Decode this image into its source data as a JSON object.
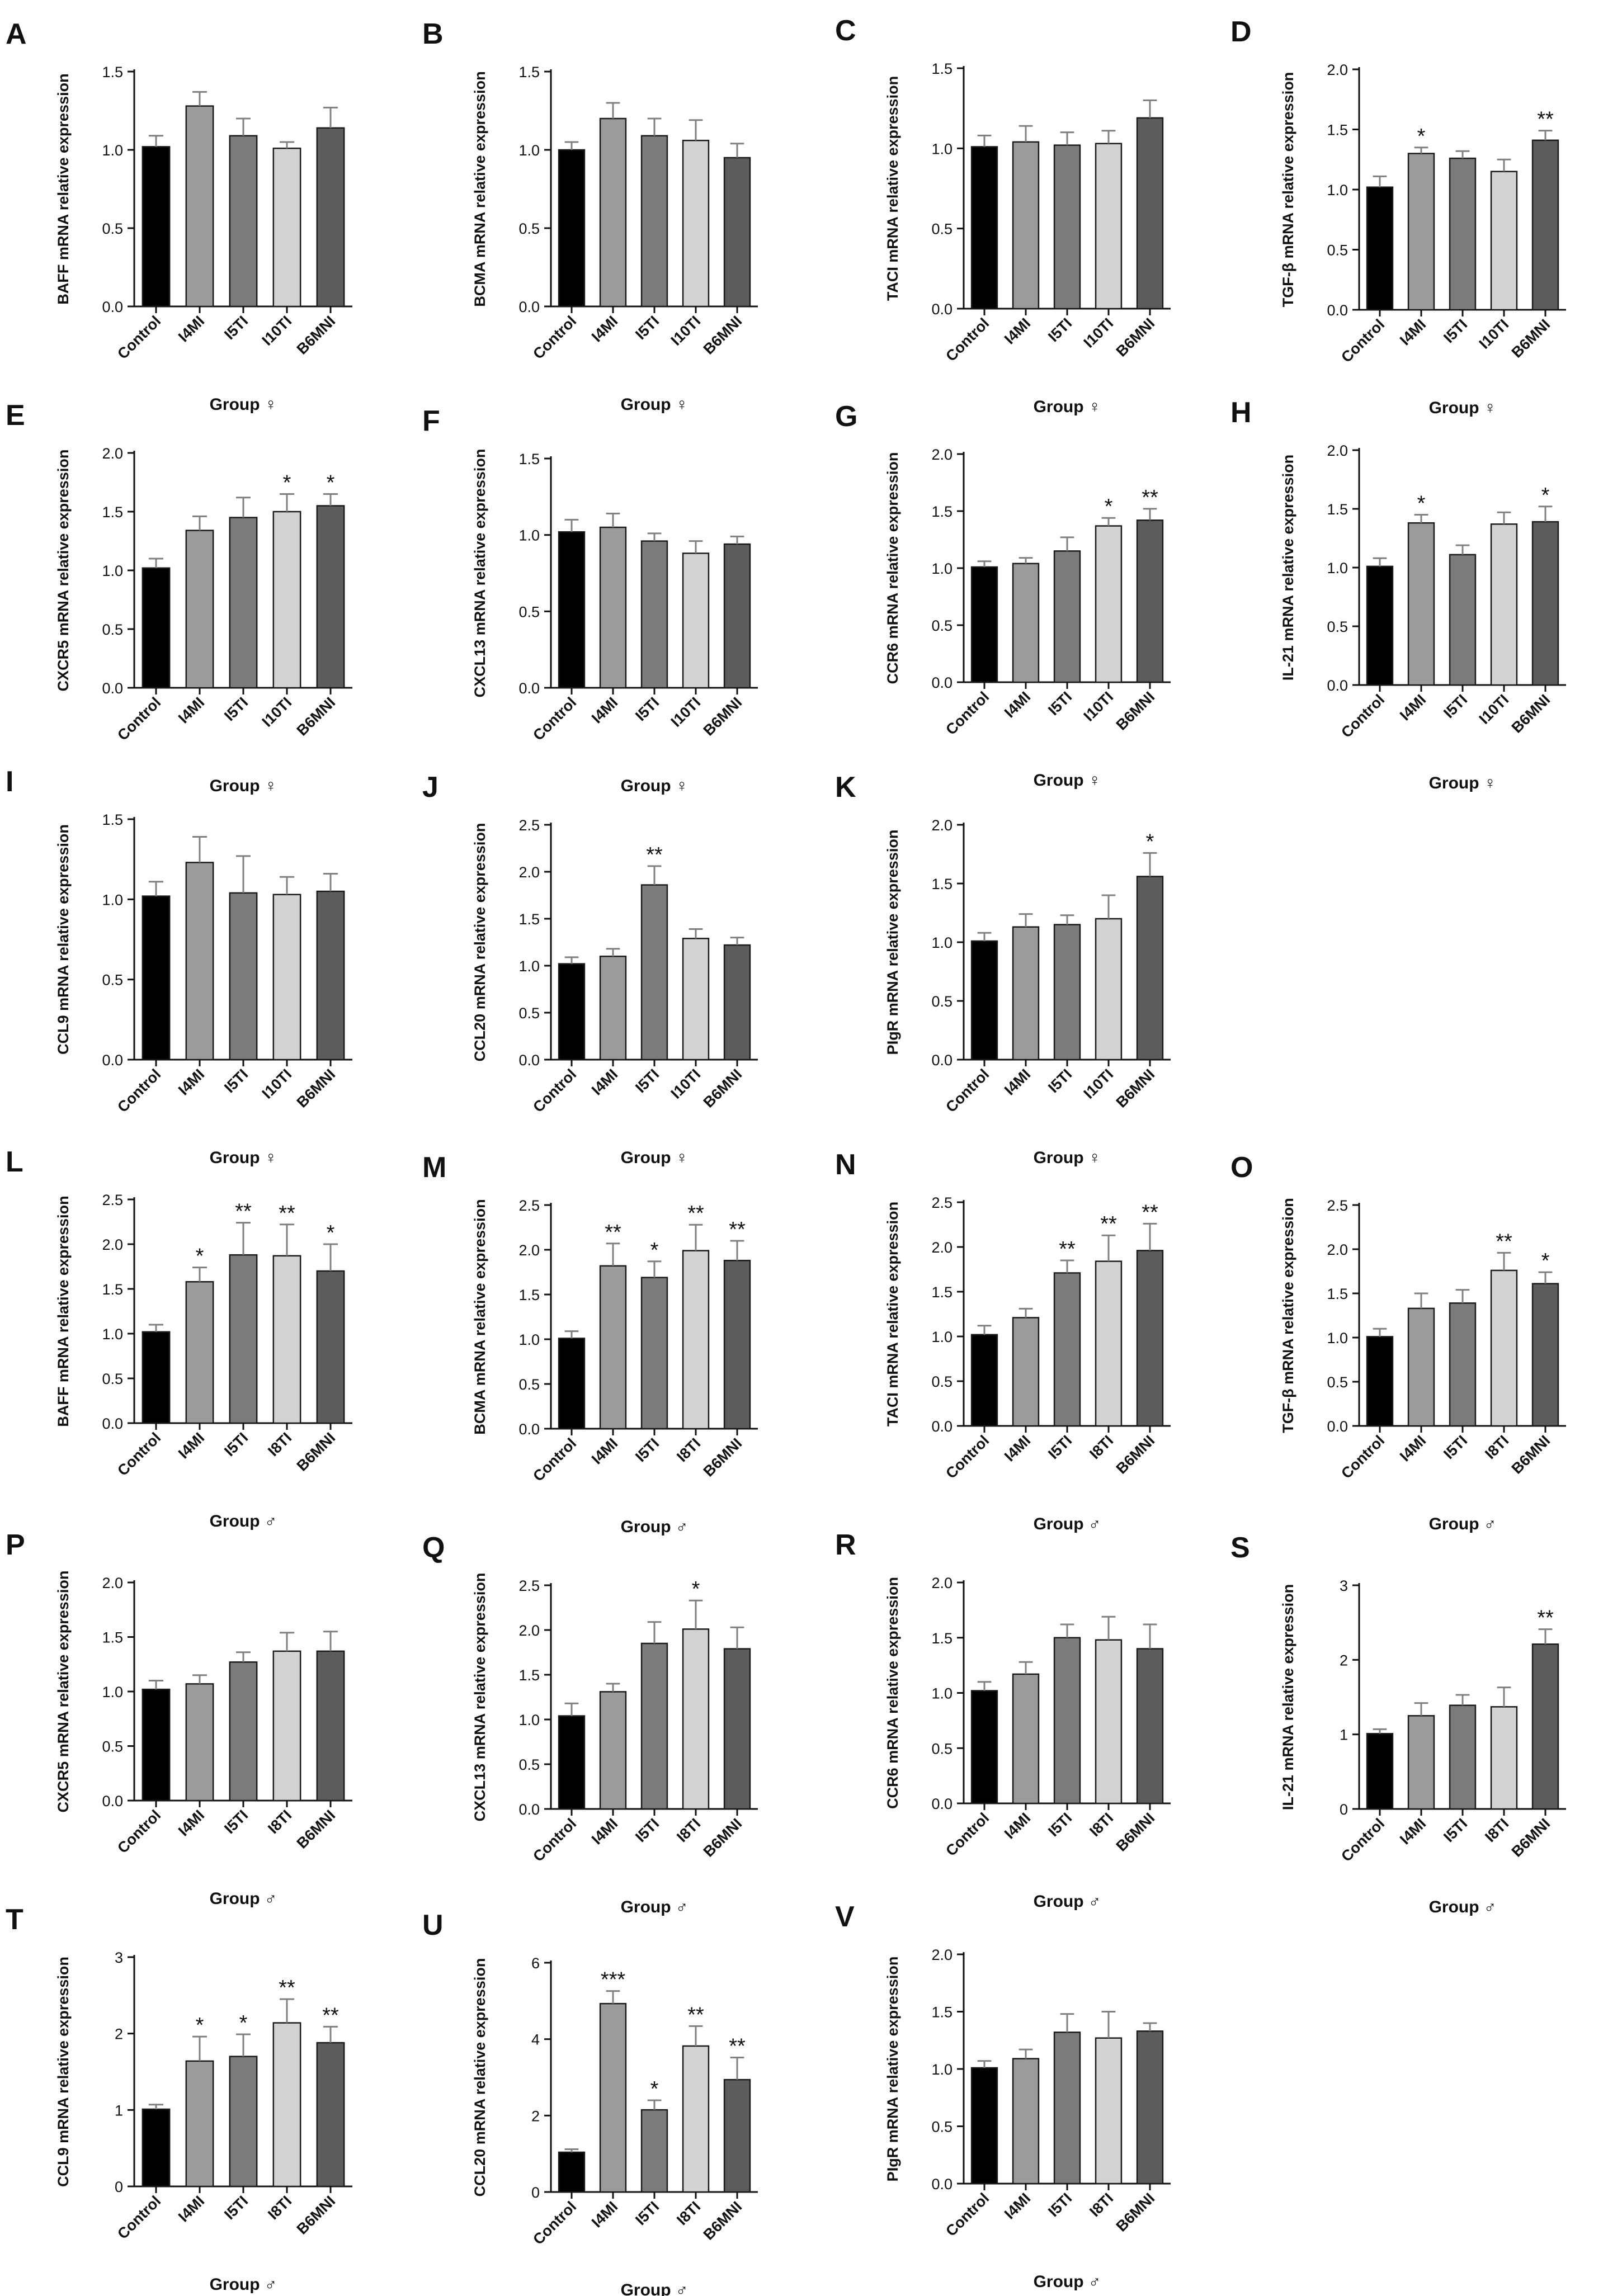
{
  "colors": {
    "bars": [
      "#000000",
      "#9b9b9b",
      "#7b7b7b",
      "#d3d3d3",
      "#5c5c5c"
    ],
    "axis": "#111111",
    "error_bar": "#808080"
  },
  "chart_data": [
    {
      "panel": "A",
      "type": "bar",
      "title": "",
      "ylabel": "BAFF mRNA relative expression",
      "xlabel": "Group ♀",
      "categories": [
        "Control",
        "I4MI",
        "I5TI",
        "I10TI",
        "B6MNI"
      ],
      "values": [
        1.02,
        1.28,
        1.09,
        1.01,
        1.14
      ],
      "errors": [
        0.07,
        0.09,
        0.11,
        0.04,
        0.13
      ],
      "significance": [
        "",
        "",
        "",
        "",
        ""
      ],
      "ylim": [
        0,
        1.5
      ],
      "yticks": [
        "0.0",
        "0.5",
        "1.0",
        "1.5"
      ]
    },
    {
      "panel": "B",
      "type": "bar",
      "title": "",
      "ylabel": "BCMA mRNA relative expression",
      "xlabel": "Group ♀",
      "categories": [
        "Control",
        "I4MI",
        "I5TI",
        "I10TI",
        "B6MNI"
      ],
      "values": [
        1.0,
        1.2,
        1.09,
        1.06,
        0.95
      ],
      "errors": [
        0.05,
        0.1,
        0.11,
        0.13,
        0.09
      ],
      "significance": [
        "",
        "",
        "",
        "",
        ""
      ],
      "ylim": [
        0,
        1.5
      ],
      "yticks": [
        "0.0",
        "0.5",
        "1.0",
        "1.5"
      ]
    },
    {
      "panel": "C",
      "type": "bar",
      "title": "",
      "ylabel": "TACI mRNA relative expression",
      "xlabel": "Group ♀",
      "categories": [
        "Control",
        "I4MI",
        "I5TI",
        "I10TI",
        "B6MNI"
      ],
      "values": [
        1.01,
        1.04,
        1.02,
        1.03,
        1.19
      ],
      "errors": [
        0.07,
        0.1,
        0.08,
        0.08,
        0.11
      ],
      "significance": [
        "",
        "",
        "",
        "",
        ""
      ],
      "ylim": [
        0,
        1.5
      ],
      "yticks": [
        "0.0",
        "0.5",
        "1.0",
        "1.5"
      ]
    },
    {
      "panel": "D",
      "type": "bar",
      "title": "",
      "ylabel": "TGF-β mRNA relative expression",
      "xlabel": "Group ♀",
      "categories": [
        "Control",
        "I4MI",
        "I5TI",
        "I10TI",
        "B6MNI"
      ],
      "values": [
        1.02,
        1.3,
        1.26,
        1.15,
        1.41
      ],
      "errors": [
        0.09,
        0.05,
        0.06,
        0.1,
        0.08
      ],
      "significance": [
        "",
        "*",
        "",
        "",
        "**"
      ],
      "ylim": [
        0,
        2.0
      ],
      "yticks": [
        "0.0",
        "0.5",
        "1.0",
        "1.5",
        "2.0"
      ]
    },
    {
      "panel": "E",
      "type": "bar",
      "title": "",
      "ylabel": "CXCR5 mRNA relative expression",
      "xlabel": "Group ♀",
      "categories": [
        "Control",
        "I4MI",
        "I5TI",
        "I10TI",
        "B6MNI"
      ],
      "values": [
        1.02,
        1.34,
        1.45,
        1.5,
        1.55
      ],
      "errors": [
        0.08,
        0.12,
        0.17,
        0.15,
        0.1
      ],
      "significance": [
        "",
        "",
        "",
        "*",
        "*"
      ],
      "ylim": [
        0,
        2.0
      ],
      "yticks": [
        "0.0",
        "0.5",
        "1.0",
        "1.5",
        "2.0"
      ]
    },
    {
      "panel": "F",
      "type": "bar",
      "title": "",
      "ylabel": "CXCL13 mRNA relative expression",
      "xlabel": "Group ♀",
      "categories": [
        "Control",
        "I4MI",
        "I5TI",
        "I10TI",
        "B6MNI"
      ],
      "values": [
        1.02,
        1.05,
        0.96,
        0.88,
        0.94
      ],
      "errors": [
        0.08,
        0.09,
        0.05,
        0.08,
        0.05
      ],
      "significance": [
        "",
        "",
        "",
        "",
        ""
      ],
      "ylim": [
        0,
        1.5
      ],
      "yticks": [
        "0.0",
        "0.5",
        "1.0",
        "1.5"
      ]
    },
    {
      "panel": "G",
      "type": "bar",
      "title": "",
      "ylabel": "CCR6 mRNA relative expression",
      "xlabel": "Group ♀",
      "categories": [
        "Control",
        "I4MI",
        "I5TI",
        "I10TI",
        "B6MNI"
      ],
      "values": [
        1.01,
        1.04,
        1.15,
        1.37,
        1.42
      ],
      "errors": [
        0.05,
        0.05,
        0.12,
        0.07,
        0.1
      ],
      "significance": [
        "",
        "",
        "",
        "*",
        "**"
      ],
      "ylim": [
        0,
        2.0
      ],
      "yticks": [
        "0.0",
        "0.5",
        "1.0",
        "1.5",
        "2.0"
      ]
    },
    {
      "panel": "H",
      "type": "bar",
      "title": "",
      "ylabel": "IL-21 mRNA relative expression",
      "xlabel": "Group ♀",
      "categories": [
        "Control",
        "I4MI",
        "I5TI",
        "I10TI",
        "B6MNI"
      ],
      "values": [
        1.01,
        1.38,
        1.11,
        1.37,
        1.39
      ],
      "errors": [
        0.07,
        0.07,
        0.08,
        0.1,
        0.13
      ],
      "significance": [
        "",
        "*",
        "",
        "",
        "*"
      ],
      "ylim": [
        0,
        2.0
      ],
      "yticks": [
        "0.0",
        "0.5",
        "1.0",
        "1.5",
        "2.0"
      ]
    },
    {
      "panel": "I",
      "type": "bar",
      "title": "",
      "ylabel": "CCL9 mRNA relative expression",
      "xlabel": "Group ♀",
      "categories": [
        "Control",
        "I4MI",
        "I5TI",
        "I10TI",
        "B6MNI"
      ],
      "values": [
        1.02,
        1.23,
        1.04,
        1.03,
        1.05
      ],
      "errors": [
        0.09,
        0.16,
        0.23,
        0.11,
        0.11
      ],
      "significance": [
        "",
        "",
        "",
        "",
        ""
      ],
      "ylim": [
        0,
        1.5
      ],
      "yticks": [
        "0.0",
        "0.5",
        "1.0",
        "1.5"
      ]
    },
    {
      "panel": "J",
      "type": "bar",
      "title": "",
      "ylabel": "CCL20 mRNA relative expression",
      "xlabel": "Group ♀",
      "categories": [
        "Control",
        "I4MI",
        "I5TI",
        "I10TI",
        "B6MNI"
      ],
      "values": [
        1.02,
        1.1,
        1.86,
        1.29,
        1.22
      ],
      "errors": [
        0.07,
        0.08,
        0.2,
        0.1,
        0.08
      ],
      "significance": [
        "",
        "",
        "**",
        "",
        ""
      ],
      "ylim": [
        0,
        2.5
      ],
      "yticks": [
        "0.0",
        "0.5",
        "1.0",
        "1.5",
        "2.0",
        "2.5"
      ]
    },
    {
      "panel": "K",
      "type": "bar",
      "title": "",
      "ylabel": "PIgR mRNA relative expression",
      "xlabel": "Group ♀",
      "categories": [
        "Control",
        "I4MI",
        "I5TI",
        "I10TI",
        "B6MNI"
      ],
      "values": [
        1.01,
        1.13,
        1.15,
        1.2,
        1.56
      ],
      "errors": [
        0.07,
        0.11,
        0.08,
        0.2,
        0.2
      ],
      "significance": [
        "",
        "",
        "",
        "",
        "*"
      ],
      "ylim": [
        0,
        2.0
      ],
      "yticks": [
        "0.0",
        "0.5",
        "1.0",
        "1.5",
        "2.0"
      ]
    },
    {
      "panel": "L",
      "type": "bar",
      "title": "",
      "ylabel": "BAFF mRNA relative expression",
      "xlabel": "Group ♂",
      "categories": [
        "Control",
        "I4MI",
        "I5TI",
        "I8TI",
        "B6MNI"
      ],
      "values": [
        1.02,
        1.58,
        1.88,
        1.87,
        1.7
      ],
      "errors": [
        0.08,
        0.16,
        0.36,
        0.35,
        0.3
      ],
      "significance": [
        "",
        "*",
        "**",
        "**",
        "*"
      ],
      "ylim": [
        0,
        2.5
      ],
      "yticks": [
        "0.0",
        "0.5",
        "1.0",
        "1.5",
        "2.0",
        "2.5"
      ]
    },
    {
      "panel": "M",
      "type": "bar",
      "title": "",
      "ylabel": "BCMA mRNA relative expression",
      "xlabel": "Group ♂",
      "categories": [
        "Control",
        "I4MI",
        "I5TI",
        "I8TI",
        "B6MNI"
      ],
      "values": [
        1.01,
        1.82,
        1.69,
        1.99,
        1.88
      ],
      "errors": [
        0.08,
        0.25,
        0.18,
        0.29,
        0.22
      ],
      "significance": [
        "",
        "**",
        "*",
        "**",
        "**"
      ],
      "ylim": [
        0,
        2.5
      ],
      "yticks": [
        "0.0",
        "0.5",
        "1.0",
        "1.5",
        "2.0",
        "2.5"
      ]
    },
    {
      "panel": "N",
      "type": "bar",
      "title": "",
      "ylabel": "TACI mRNA relative expression",
      "xlabel": "Group ♂",
      "categories": [
        "Control",
        "I4MI",
        "I5TI",
        "I8TI",
        "B6MNI"
      ],
      "values": [
        1.02,
        1.21,
        1.71,
        1.84,
        1.96
      ],
      "errors": [
        0.1,
        0.1,
        0.14,
        0.29,
        0.3
      ],
      "significance": [
        "",
        "",
        "**",
        "**",
        "**"
      ],
      "ylim": [
        0,
        2.5
      ],
      "yticks": [
        "0.0",
        "0.5",
        "1.0",
        "1.5",
        "2.0",
        "2.5"
      ]
    },
    {
      "panel": "O",
      "type": "bar",
      "title": "",
      "ylabel": "TGF-β mRNA relative expression",
      "xlabel": "Group ♂",
      "categories": [
        "Control",
        "I4MI",
        "I5TI",
        "I8TI",
        "B6MNI"
      ],
      "values": [
        1.01,
        1.33,
        1.39,
        1.76,
        1.61
      ],
      "errors": [
        0.09,
        0.17,
        0.15,
        0.2,
        0.13
      ],
      "significance": [
        "",
        "",
        "",
        "**",
        "*"
      ],
      "ylim": [
        0,
        2.5
      ],
      "yticks": [
        "0.0",
        "0.5",
        "1.0",
        "1.5",
        "2.0",
        "2.5"
      ]
    },
    {
      "panel": "P",
      "type": "bar",
      "title": "",
      "ylabel": "CXCR5 mRNA relative expression",
      "xlabel": "Group ♂",
      "categories": [
        "Control",
        "I4MI",
        "I5TI",
        "I8TI",
        "B6MNI"
      ],
      "values": [
        1.02,
        1.07,
        1.27,
        1.37,
        1.37
      ],
      "errors": [
        0.08,
        0.08,
        0.09,
        0.17,
        0.18
      ],
      "significance": [
        "",
        "",
        "",
        "",
        ""
      ],
      "ylim": [
        0,
        2.0
      ],
      "yticks": [
        "0.0",
        "0.5",
        "1.0",
        "1.5",
        "2.0"
      ]
    },
    {
      "panel": "Q",
      "type": "bar",
      "title": "",
      "ylabel": "CXCL13 mRNA relative expression",
      "xlabel": "Group ♂",
      "categories": [
        "Control",
        "I4MI",
        "I5TI",
        "I8TI",
        "B6MNI"
      ],
      "values": [
        1.04,
        1.31,
        1.85,
        2.01,
        1.79
      ],
      "errors": [
        0.14,
        0.09,
        0.24,
        0.32,
        0.24
      ],
      "significance": [
        "",
        "",
        "",
        "*",
        ""
      ],
      "ylim": [
        0,
        2.5
      ],
      "yticks": [
        "0.0",
        "0.5",
        "1.0",
        "1.5",
        "2.0",
        "2.5"
      ]
    },
    {
      "panel": "R",
      "type": "bar",
      "title": "",
      "ylabel": "CCR6 mRNA relative expression",
      "xlabel": "Group ♂",
      "categories": [
        "Control",
        "I4MI",
        "I5TI",
        "I8TI",
        "B6MNI"
      ],
      "values": [
        1.02,
        1.17,
        1.5,
        1.48,
        1.4
      ],
      "errors": [
        0.08,
        0.11,
        0.12,
        0.21,
        0.22
      ],
      "significance": [
        "",
        "",
        "",
        "",
        ""
      ],
      "ylim": [
        0,
        2.0
      ],
      "yticks": [
        "0.0",
        "0.5",
        "1.0",
        "1.5",
        "2.0"
      ]
    },
    {
      "panel": "S",
      "type": "bar",
      "title": "",
      "ylabel": "IL-21 mRNA relative expression",
      "xlabel": "Group ♂",
      "categories": [
        "Control",
        "I4MI",
        "I5TI",
        "I8TI",
        "B6MNI"
      ],
      "values": [
        1.01,
        1.25,
        1.39,
        1.37,
        2.21
      ],
      "errors": [
        0.06,
        0.17,
        0.14,
        0.26,
        0.2
      ],
      "significance": [
        "",
        "",
        "",
        "",
        "**"
      ],
      "ylim": [
        0,
        3
      ],
      "yticks": [
        "0",
        "1",
        "2",
        "3"
      ]
    },
    {
      "panel": "T",
      "type": "bar",
      "title": "",
      "ylabel": "CCL9 mRNA relative expression",
      "xlabel": "Group ♂",
      "categories": [
        "Control",
        "I4MI",
        "I5TI",
        "I8TI",
        "B6MNI"
      ],
      "values": [
        1.01,
        1.64,
        1.7,
        2.14,
        1.88
      ],
      "errors": [
        0.06,
        0.32,
        0.29,
        0.31,
        0.21
      ],
      "significance": [
        "",
        "*",
        "*",
        "**",
        "**"
      ],
      "ylim": [
        0,
        3
      ],
      "yticks": [
        "0",
        "1",
        "2",
        "3"
      ]
    },
    {
      "panel": "U",
      "type": "bar",
      "title": "",
      "ylabel": "CCL20 mRNA relative expression",
      "xlabel": "Group ♂",
      "categories": [
        "Control",
        "I4MI",
        "I5TI",
        "I8TI",
        "B6MNI"
      ],
      "values": [
        1.04,
        4.93,
        2.15,
        3.82,
        2.94
      ],
      "errors": [
        0.08,
        0.33,
        0.25,
        0.52,
        0.58
      ],
      "significance": [
        "",
        "***",
        "*",
        "**",
        "**"
      ],
      "ylim": [
        0,
        6
      ],
      "yticks": [
        "0",
        "2",
        "4",
        "6"
      ]
    },
    {
      "panel": "V",
      "type": "bar",
      "title": "",
      "ylabel": "PIgR mRNA relative expression",
      "xlabel": "Group ♂",
      "categories": [
        "Control",
        "I4MI",
        "I5TI",
        "I8TI",
        "B6MNI"
      ],
      "values": [
        1.01,
        1.09,
        1.32,
        1.27,
        1.33
      ],
      "errors": [
        0.06,
        0.08,
        0.16,
        0.23,
        0.07
      ],
      "significance": [
        "",
        "",
        "",
        "",
        ""
      ],
      "ylim": [
        0,
        2.0
      ],
      "yticks": [
        "0.0",
        "0.5",
        "1.0",
        "1.5",
        "2.0"
      ]
    }
  ]
}
